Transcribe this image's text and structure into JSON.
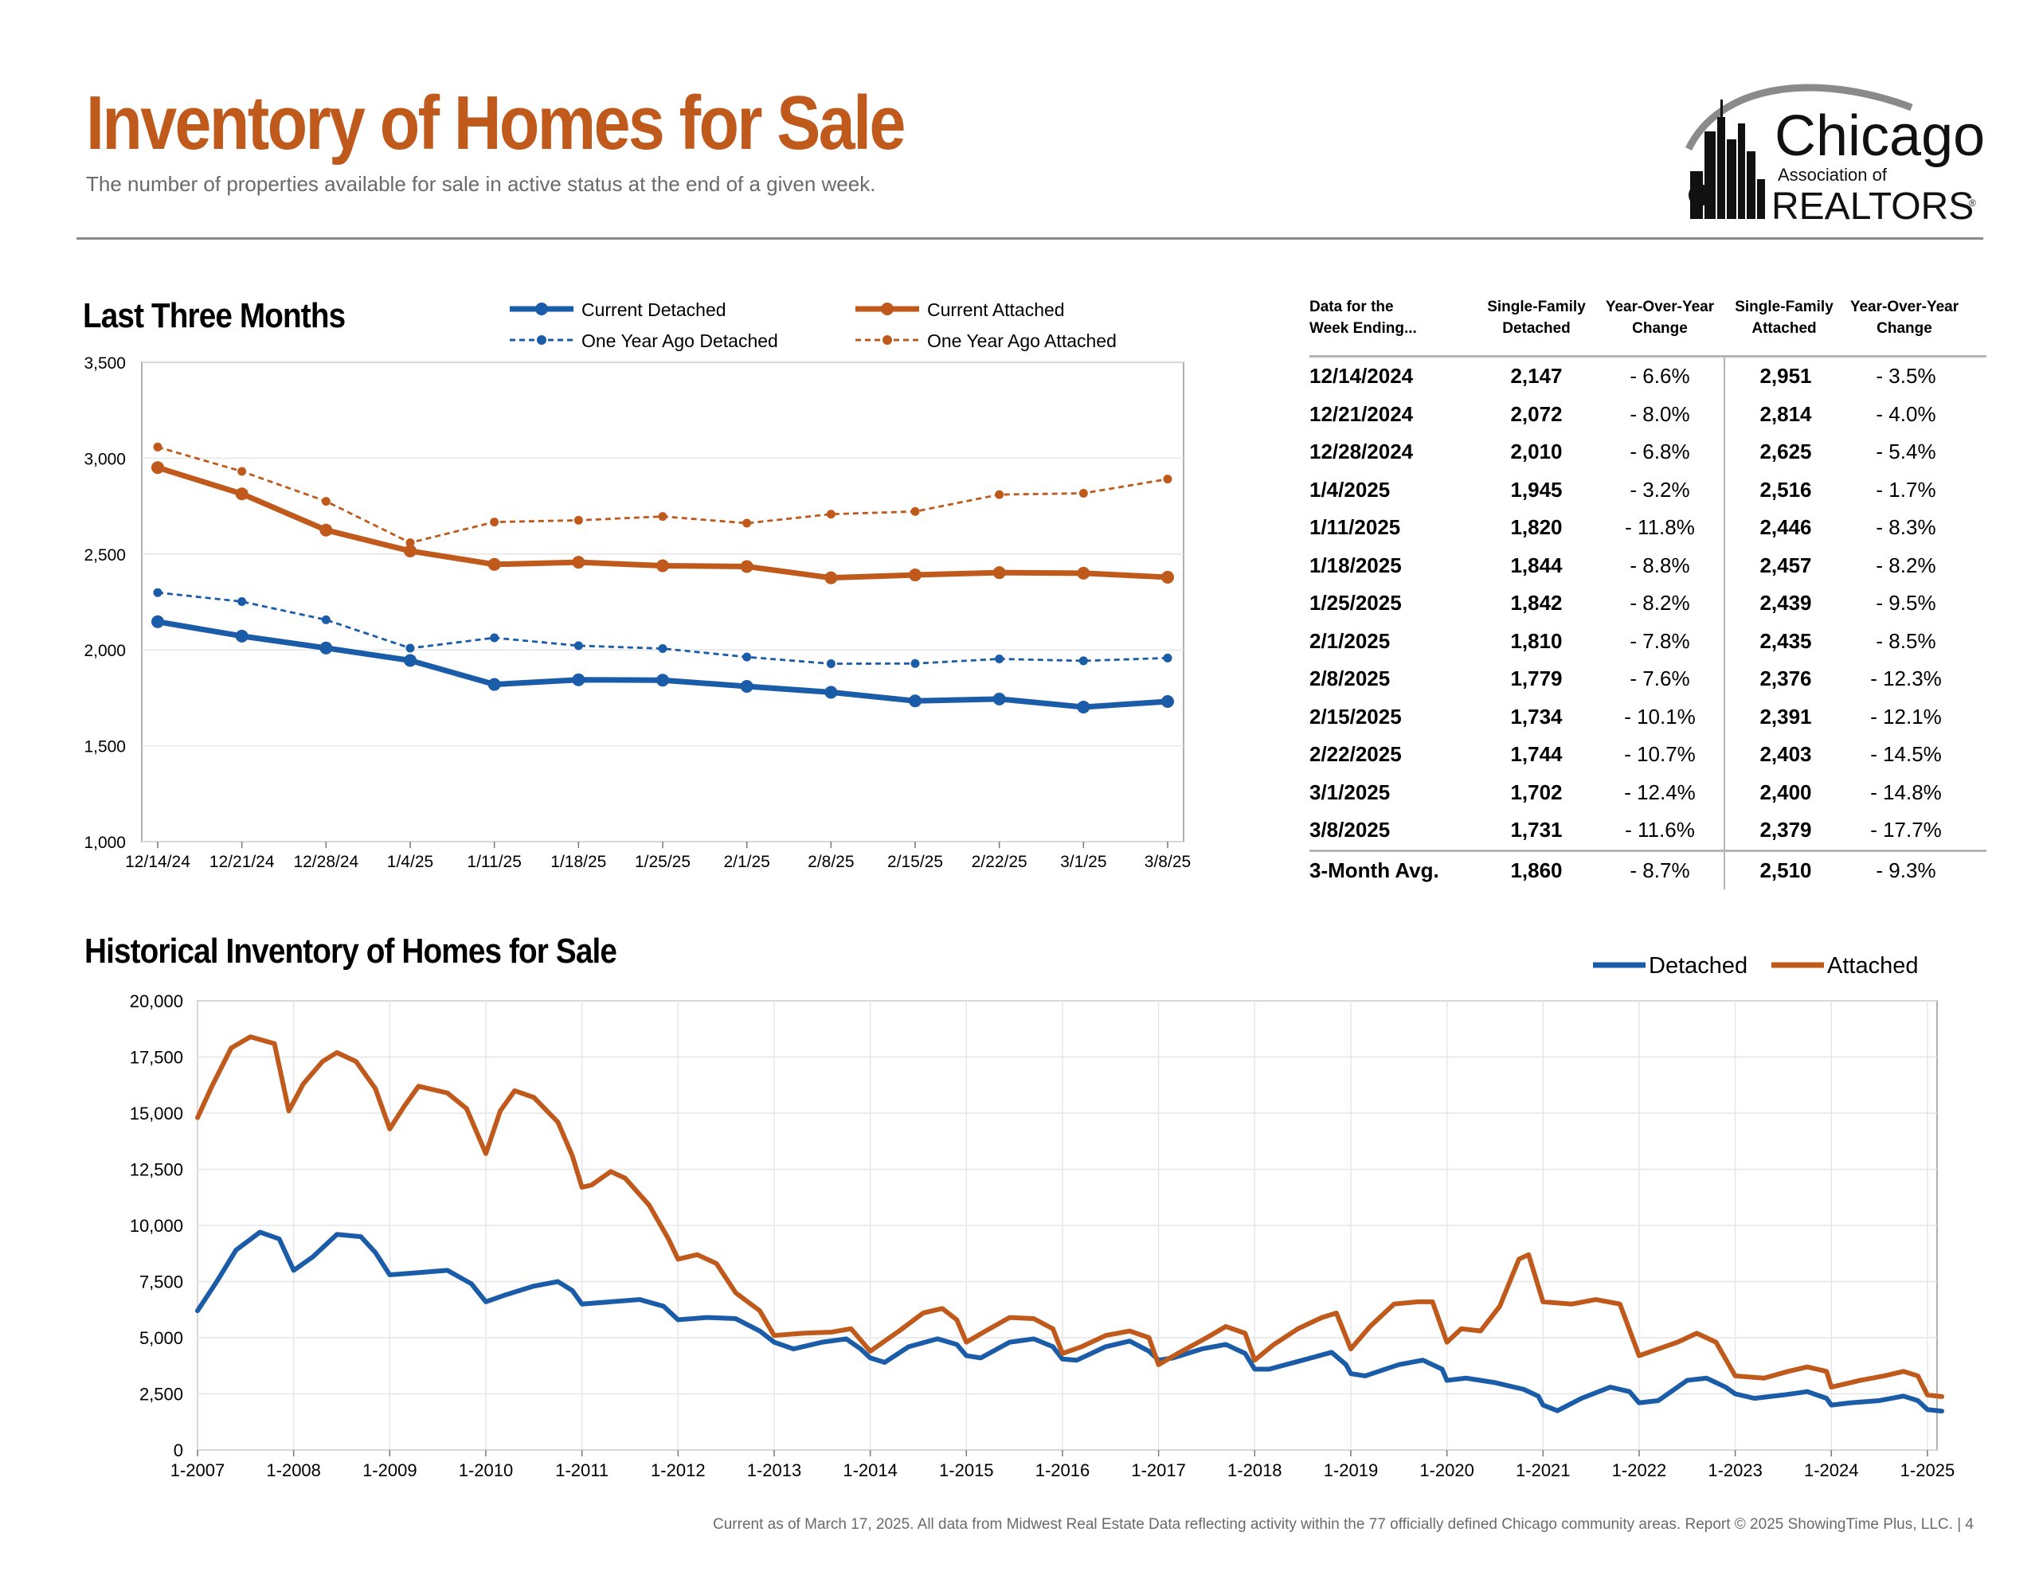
{
  "header": {
    "title": "Inventory of Homes for Sale",
    "subtitle": "The number of properties available for sale in active status at the end of a given week.",
    "logo": {
      "line1": "Chicago",
      "line2": "Association of",
      "line3": "REALTORS",
      "mark": "®"
    }
  },
  "colors": {
    "detached": "#1a5ca8",
    "attached": "#c05a1c",
    "title": "#c05a1c"
  },
  "recent": {
    "section_title": "Last Three Months",
    "legend": [
      "Current Detached",
      "Current Attached",
      "One Year Ago Detached",
      "One Year Ago Attached"
    ]
  },
  "table": {
    "headers": [
      [
        "Data for the",
        "Week Ending..."
      ],
      [
        "Single-Family",
        "Detached"
      ],
      [
        "Year-Over-Year",
        "Change"
      ],
      [
        "Single-Family",
        "Attached"
      ],
      [
        "Year-Over-Year",
        "Change"
      ]
    ],
    "rows": [
      [
        "12/14/2024",
        "2,147",
        "- 6.6%",
        "2,951",
        "- 3.5%"
      ],
      [
        "12/21/2024",
        "2,072",
        "- 8.0%",
        "2,814",
        "- 4.0%"
      ],
      [
        "12/28/2024",
        "2,010",
        "- 6.8%",
        "2,625",
        "- 5.4%"
      ],
      [
        "1/4/2025",
        "1,945",
        "- 3.2%",
        "2,516",
        "- 1.7%"
      ],
      [
        "1/11/2025",
        "1,820",
        "- 11.8%",
        "2,446",
        "- 8.3%"
      ],
      [
        "1/18/2025",
        "1,844",
        "- 8.8%",
        "2,457",
        "- 8.2%"
      ],
      [
        "1/25/2025",
        "1,842",
        "- 8.2%",
        "2,439",
        "- 9.5%"
      ],
      [
        "2/1/2025",
        "1,810",
        "- 7.8%",
        "2,435",
        "- 8.5%"
      ],
      [
        "2/8/2025",
        "1,779",
        "- 7.6%",
        "2,376",
        "- 12.3%"
      ],
      [
        "2/15/2025",
        "1,734",
        "- 10.1%",
        "2,391",
        "- 12.1%"
      ],
      [
        "2/22/2025",
        "1,744",
        "- 10.7%",
        "2,403",
        "- 14.5%"
      ],
      [
        "3/1/2025",
        "1,702",
        "- 12.4%",
        "2,400",
        "- 14.8%"
      ],
      [
        "3/8/2025",
        "1,731",
        "- 11.6%",
        "2,379",
        "- 17.7%"
      ]
    ],
    "avg": [
      "3-Month Avg.",
      "1,860",
      "- 8.7%",
      "2,510",
      "- 9.3%"
    ]
  },
  "historical": {
    "section_title": "Historical Inventory of Homes for Sale"
  },
  "footer": "Current as of March 17, 2025.  All data from Midwest Real Estate Data reflecting activity within the 77 officially defined Chicago community areas. Report © 2025 ShowingTime Plus, LLC.  |  4",
  "chart_data": [
    {
      "type": "line",
      "categories": [
        "12/14/24",
        "12/21/24",
        "12/28/24",
        "1/4/25",
        "1/11/25",
        "1/18/25",
        "1/25/25",
        "2/1/25",
        "2/8/25",
        "2/15/25",
        "2/22/25",
        "3/1/25",
        "3/8/25"
      ],
      "ylim": [
        1000,
        3500
      ],
      "yticks": [
        "1,000",
        "1,500",
        "2,000",
        "2,500",
        "3,000",
        "3,500"
      ],
      "grid": true,
      "legend": "top",
      "series": [
        {
          "name": "Current Detached",
          "color": "#1a5ca8",
          "style": "solid",
          "values": [
            2147,
            2072,
            2010,
            1945,
            1820,
            1844,
            1842,
            1810,
            1779,
            1734,
            1744,
            1702,
            1731
          ]
        },
        {
          "name": "Current Attached",
          "color": "#c05a1c",
          "style": "solid",
          "values": [
            2951,
            2814,
            2625,
            2516,
            2446,
            2457,
            2439,
            2435,
            2376,
            2391,
            2403,
            2400,
            2379
          ]
        },
        {
          "name": "One Year Ago Detached",
          "color": "#1a5ca8",
          "style": "dashed",
          "values": [
            2299,
            2252,
            2157,
            2009,
            2063,
            2022,
            2007,
            1963,
            1928,
            1929,
            1953,
            1943,
            1958
          ]
        },
        {
          "name": "One Year Ago Attached",
          "color": "#c05a1c",
          "style": "dashed",
          "values": [
            3058,
            2931,
            2775,
            2559,
            2667,
            2676,
            2696,
            2661,
            2708,
            2722,
            2810,
            2817,
            2891
          ]
        }
      ]
    },
    {
      "type": "line",
      "x_labels": [
        "1-2007",
        "1-2008",
        "1-2009",
        "1-2010",
        "1-2011",
        "1-2012",
        "1-2013",
        "1-2014",
        "1-2015",
        "1-2016",
        "1-2017",
        "1-2018",
        "1-2019",
        "1-2020",
        "1-2021",
        "1-2022",
        "1-2023",
        "1-2024",
        "1-2025"
      ],
      "ylim": [
        0,
        20000
      ],
      "yticks": [
        "0",
        "2,500",
        "5,000",
        "7,500",
        "10,000",
        "12,500",
        "15,000",
        "17,500",
        "20,000"
      ],
      "grid": true,
      "legend": "top-right",
      "series": [
        {
          "name": "Detached",
          "color": "#1a5ca8",
          "points": [
            [
              2007.0,
              6200
            ],
            [
              2007.2,
              7500
            ],
            [
              2007.4,
              8900
            ],
            [
              2007.65,
              9700
            ],
            [
              2007.85,
              9400
            ],
            [
              2008.0,
              8000
            ],
            [
              2008.2,
              8600
            ],
            [
              2008.45,
              9600
            ],
            [
              2008.7,
              9500
            ],
            [
              2008.85,
              8800
            ],
            [
              2009.0,
              7800
            ],
            [
              2009.3,
              7900
            ],
            [
              2009.6,
              8000
            ],
            [
              2009.85,
              7400
            ],
            [
              2010.0,
              6600
            ],
            [
              2010.2,
              6900
            ],
            [
              2010.5,
              7300
            ],
            [
              2010.75,
              7500
            ],
            [
              2010.9,
              7100
            ],
            [
              2011.0,
              6500
            ],
            [
              2011.3,
              6600
            ],
            [
              2011.6,
              6700
            ],
            [
              2011.85,
              6400
            ],
            [
              2012.0,
              5800
            ],
            [
              2012.3,
              5900
            ],
            [
              2012.6,
              5850
            ],
            [
              2012.85,
              5300
            ],
            [
              2013.0,
              4800
            ],
            [
              2013.2,
              4500
            ],
            [
              2013.5,
              4800
            ],
            [
              2013.75,
              4950
            ],
            [
              2013.9,
              4500
            ],
            [
              2014.0,
              4100
            ],
            [
              2014.15,
              3900
            ],
            [
              2014.4,
              4600
            ],
            [
              2014.7,
              4950
            ],
            [
              2014.9,
              4700
            ],
            [
              2015.0,
              4200
            ],
            [
              2015.15,
              4100
            ],
            [
              2015.45,
              4800
            ],
            [
              2015.7,
              4950
            ],
            [
              2015.9,
              4600
            ],
            [
              2016.0,
              4050
            ],
            [
              2016.15,
              4000
            ],
            [
              2016.45,
              4600
            ],
            [
              2016.7,
              4850
            ],
            [
              2016.9,
              4400
            ],
            [
              2017.0,
              4000
            ],
            [
              2017.15,
              4100
            ],
            [
              2017.45,
              4500
            ],
            [
              2017.7,
              4700
            ],
            [
              2017.9,
              4300
            ],
            [
              2018.0,
              3600
            ],
            [
              2018.15,
              3600
            ],
            [
              2018.5,
              4000
            ],
            [
              2018.8,
              4350
            ],
            [
              2018.95,
              3800
            ],
            [
              2019.0,
              3400
            ],
            [
              2019.15,
              3300
            ],
            [
              2019.5,
              3800
            ],
            [
              2019.75,
              4000
            ],
            [
              2019.95,
              3600
            ],
            [
              2020.0,
              3100
            ],
            [
              2020.2,
              3200
            ],
            [
              2020.5,
              3000
            ],
            [
              2020.8,
              2700
            ],
            [
              2020.95,
              2400
            ],
            [
              2021.0,
              2000
            ],
            [
              2021.15,
              1750
            ],
            [
              2021.4,
              2300
            ],
            [
              2021.7,
              2800
            ],
            [
              2021.9,
              2600
            ],
            [
              2022.0,
              2100
            ],
            [
              2022.2,
              2200
            ],
            [
              2022.5,
              3100
            ],
            [
              2022.7,
              3200
            ],
            [
              2022.9,
              2800
            ],
            [
              2023.0,
              2500
            ],
            [
              2023.2,
              2300
            ],
            [
              2023.5,
              2450
            ],
            [
              2023.75,
              2600
            ],
            [
              2023.95,
              2300
            ],
            [
              2024.0,
              2000
            ],
            [
              2024.2,
              2100
            ],
            [
              2024.5,
              2200
            ],
            [
              2024.75,
              2400
            ],
            [
              2024.9,
              2200
            ],
            [
              2025.0,
              1800
            ],
            [
              2025.15,
              1731
            ]
          ]
        },
        {
          "name": "Attached",
          "color": "#c05a1c",
          "points": [
            [
              2007.0,
              14800
            ],
            [
              2007.15,
              16200
            ],
            [
              2007.35,
              17900
            ],
            [
              2007.55,
              18400
            ],
            [
              2007.8,
              18100
            ],
            [
              2007.95,
              15100
            ],
            [
              2008.1,
              16300
            ],
            [
              2008.3,
              17300
            ],
            [
              2008.45,
              17700
            ],
            [
              2008.65,
              17300
            ],
            [
              2008.85,
              16100
            ],
            [
              2009.0,
              14300
            ],
            [
              2009.15,
              15300
            ],
            [
              2009.3,
              16200
            ],
            [
              2009.6,
              15900
            ],
            [
              2009.8,
              15200
            ],
            [
              2010.0,
              13200
            ],
            [
              2010.15,
              15100
            ],
            [
              2010.3,
              16000
            ],
            [
              2010.5,
              15700
            ],
            [
              2010.75,
              14600
            ],
            [
              2010.9,
              13100
            ],
            [
              2011.0,
              11700
            ],
            [
              2011.1,
              11800
            ],
            [
              2011.3,
              12400
            ],
            [
              2011.45,
              12100
            ],
            [
              2011.7,
              10900
            ],
            [
              2011.9,
              9400
            ],
            [
              2012.0,
              8500
            ],
            [
              2012.2,
              8700
            ],
            [
              2012.4,
              8300
            ],
            [
              2012.6,
              7000
            ],
            [
              2012.85,
              6200
            ],
            [
              2013.0,
              5100
            ],
            [
              2013.3,
              5200
            ],
            [
              2013.6,
              5250
            ],
            [
              2013.8,
              5400
            ],
            [
              2014.0,
              4400
            ],
            [
              2014.3,
              5300
            ],
            [
              2014.55,
              6100
            ],
            [
              2014.75,
              6300
            ],
            [
              2014.9,
              5800
            ],
            [
              2015.0,
              4800
            ],
            [
              2015.2,
              5300
            ],
            [
              2015.45,
              5900
            ],
            [
              2015.7,
              5850
            ],
            [
              2015.9,
              5400
            ],
            [
              2016.0,
              4300
            ],
            [
              2016.2,
              4600
            ],
            [
              2016.45,
              5100
            ],
            [
              2016.7,
              5300
            ],
            [
              2016.9,
              5000
            ],
            [
              2017.0,
              3800
            ],
            [
              2017.2,
              4300
            ],
            [
              2017.5,
              5000
            ],
            [
              2017.7,
              5500
            ],
            [
              2017.9,
              5200
            ],
            [
              2018.0,
              4000
            ],
            [
              2018.2,
              4700
            ],
            [
              2018.45,
              5400
            ],
            [
              2018.7,
              5900
            ],
            [
              2018.85,
              6100
            ],
            [
              2019.0,
              4500
            ],
            [
              2019.2,
              5500
            ],
            [
              2019.45,
              6500
            ],
            [
              2019.7,
              6600
            ],
            [
              2019.85,
              6600
            ],
            [
              2020.0,
              4800
            ],
            [
              2020.15,
              5400
            ],
            [
              2020.35,
              5300
            ],
            [
              2020.55,
              6400
            ],
            [
              2020.75,
              8500
            ],
            [
              2020.85,
              8700
            ],
            [
              2021.0,
              6600
            ],
            [
              2021.3,
              6500
            ],
            [
              2021.55,
              6700
            ],
            [
              2021.8,
              6500
            ],
            [
              2022.0,
              4200
            ],
            [
              2022.2,
              4500
            ],
            [
              2022.4,
              4800
            ],
            [
              2022.6,
              5200
            ],
            [
              2022.8,
              4800
            ],
            [
              2023.0,
              3300
            ],
            [
              2023.3,
              3200
            ],
            [
              2023.55,
              3500
            ],
            [
              2023.75,
              3700
            ],
            [
              2023.95,
              3500
            ],
            [
              2024.0,
              2800
            ],
            [
              2024.3,
              3100
            ],
            [
              2024.55,
              3300
            ],
            [
              2024.75,
              3500
            ],
            [
              2024.9,
              3300
            ],
            [
              2025.0,
              2450
            ],
            [
              2025.15,
              2379
            ]
          ]
        }
      ]
    }
  ]
}
